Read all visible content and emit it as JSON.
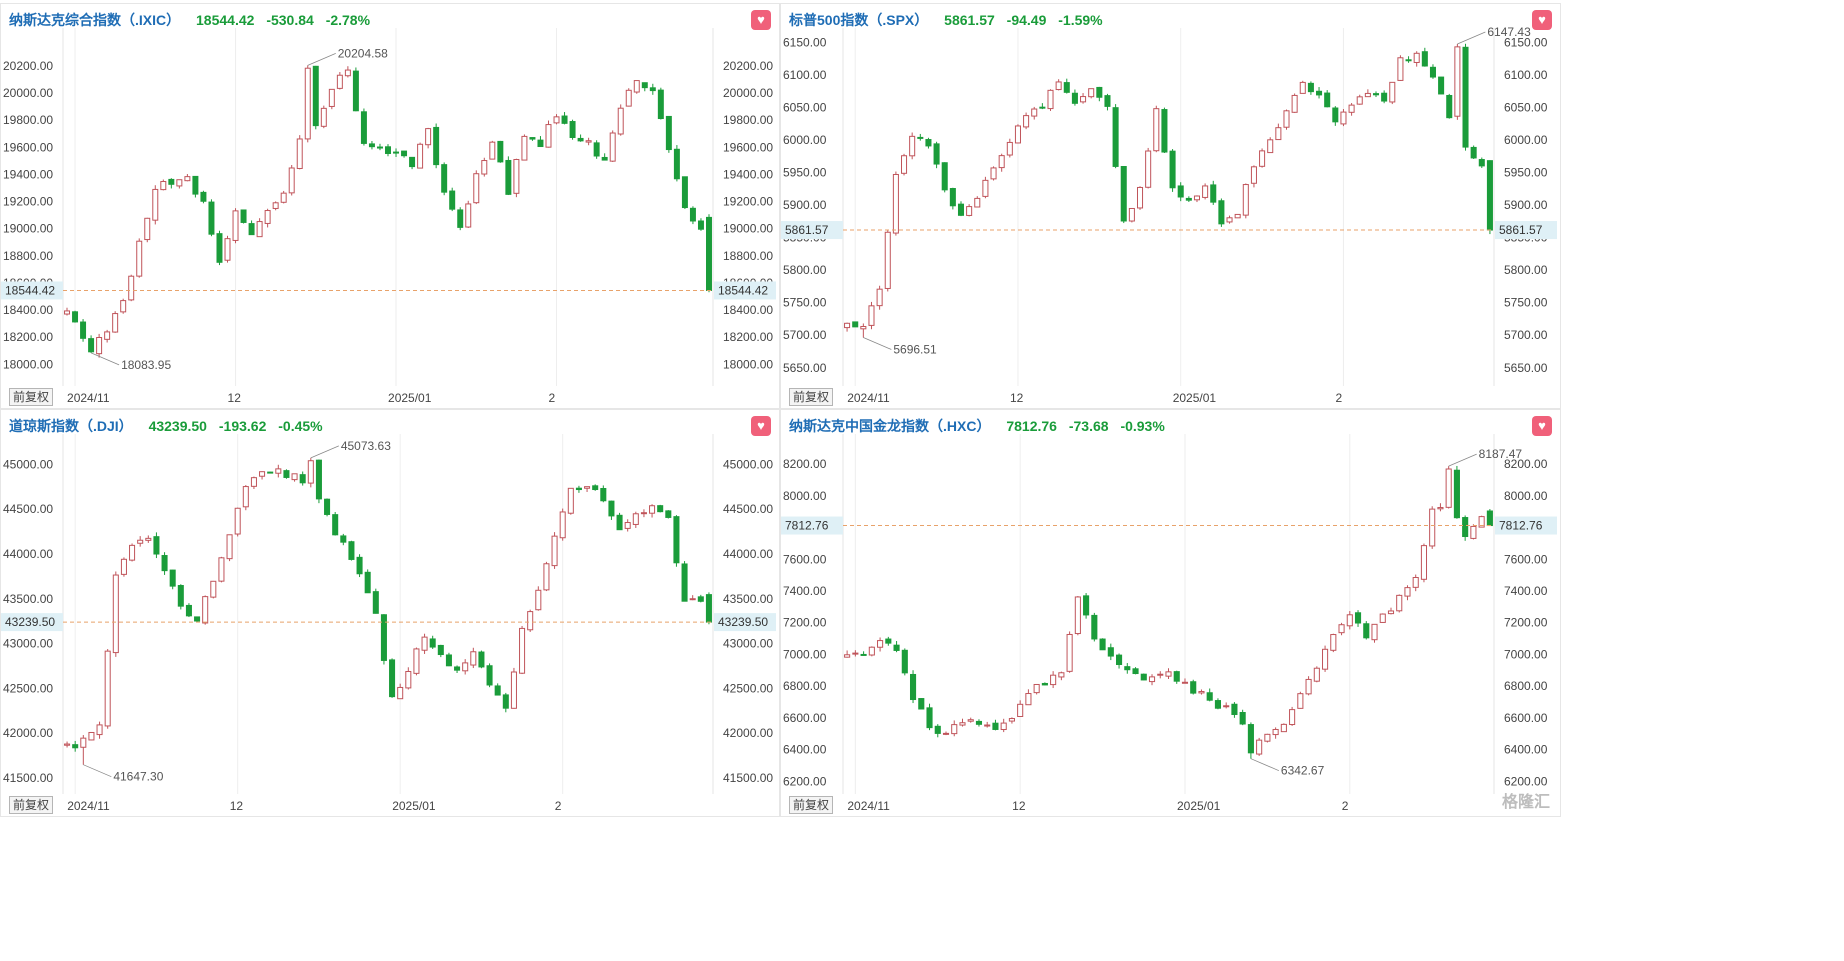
{
  "colors": {
    "up": "#c0545a",
    "down": "#1a9c3a",
    "price_line": "#e8a26a",
    "price_tag_bg": "#dff0f6"
  },
  "adj_label": "前复权",
  "watermark": "格隆汇",
  "panels": [
    {
      "id": "ixic",
      "title": "纳斯达克综合指数（.IXIC）",
      "last_str": "18544.42",
      "change_str": "-530.84",
      "pct_str": "-2.78%",
      "favorite_icon": "heart-icon",
      "active": true,
      "chart_data": {
        "type": "candlestick",
        "y_axis_ticks": [
          "18000.00",
          "18200.00",
          "18400.00",
          "18600.00",
          "18800.00",
          "19000.00",
          "19200.00",
          "19400.00",
          "19600.00",
          "19800.00",
          "20000.00",
          "20200.00"
        ],
        "ylim": [
          17840,
          20480
        ],
        "x_ticks": [
          {
            "label": "2024/11",
            "index": 1
          },
          {
            "label": "12",
            "index": 21
          },
          {
            "label": "2025/01",
            "index": 41
          },
          {
            "label": "2",
            "index": 61
          }
        ],
        "last_price": 18544.42,
        "last_label": "18544.42",
        "high_annotation": {
          "label": "20204.58",
          "index": 30,
          "value": 20204.58
        },
        "low_annotation": {
          "label": "18083.95",
          "index": 3,
          "value": 18083.95
        },
        "anchors": [
          [
            0,
            18380
          ],
          [
            3,
            18120
          ],
          [
            5,
            18250
          ],
          [
            7,
            18450
          ],
          [
            9,
            18900
          ],
          [
            11,
            19300
          ],
          [
            13,
            19350
          ],
          [
            15,
            19380
          ],
          [
            17,
            19190
          ],
          [
            19,
            18780
          ],
          [
            21,
            19100
          ],
          [
            23,
            18950
          ],
          [
            25,
            19150
          ],
          [
            27,
            19250
          ],
          [
            29,
            19650
          ],
          [
            31,
            19780
          ],
          [
            33,
            20050
          ],
          [
            35,
            20150
          ],
          [
            37,
            19620
          ],
          [
            40,
            19560
          ],
          [
            43,
            19480
          ],
          [
            45,
            19710
          ],
          [
            47,
            19250
          ],
          [
            49,
            19000
          ],
          [
            51,
            19400
          ],
          [
            53,
            19650
          ],
          [
            55,
            19280
          ],
          [
            57,
            19700
          ],
          [
            59,
            19630
          ],
          [
            61,
            19850
          ],
          [
            63,
            19680
          ],
          [
            65,
            19620
          ],
          [
            67,
            19480
          ],
          [
            69,
            19900
          ],
          [
            71,
            20080
          ],
          [
            73,
            20050
          ],
          [
            75,
            19600
          ],
          [
            77,
            19150
          ],
          [
            79,
            19020
          ],
          [
            80,
            18544.42
          ]
        ]
      }
    },
    {
      "id": "spx",
      "title": "标普500指数（.SPX）",
      "last_str": "5861.57",
      "change_str": "-94.49",
      "pct_str": "-1.59%",
      "favorite_icon": "heart-icon",
      "active": false,
      "chart_data": {
        "type": "candlestick",
        "y_axis_ticks": [
          "5650.00",
          "5700.00",
          "5750.00",
          "5800.00",
          "5850.00",
          "5900.00",
          "5950.00",
          "6000.00",
          "6050.00",
          "6100.00",
          "6150.00"
        ],
        "ylim": [
          5622,
          6172
        ],
        "x_ticks": [
          {
            "label": "2024/11",
            "index": 1
          },
          {
            "label": "12",
            "index": 21
          },
          {
            "label": "2025/01",
            "index": 41
          },
          {
            "label": "2",
            "index": 61
          }
        ],
        "last_price": 5861.57,
        "last_label": "5861.57",
        "high_annotation": {
          "label": "6147.43",
          "index": 75,
          "value": 6147.43
        },
        "low_annotation": {
          "label": "5696.51",
          "index": 2,
          "value": 5696.51
        },
        "anchors": [
          [
            0,
            5715
          ],
          [
            2,
            5712
          ],
          [
            4,
            5770
          ],
          [
            6,
            5950
          ],
          [
            8,
            6005
          ],
          [
            10,
            5995
          ],
          [
            12,
            5920
          ],
          [
            14,
            5890
          ],
          [
            16,
            5910
          ],
          [
            18,
            5960
          ],
          [
            20,
            6000
          ],
          [
            22,
            6035
          ],
          [
            24,
            6055
          ],
          [
            26,
            6090
          ],
          [
            28,
            6060
          ],
          [
            30,
            6075
          ],
          [
            32,
            6045
          ],
          [
            34,
            5870
          ],
          [
            36,
            5930
          ],
          [
            38,
            6045
          ],
          [
            40,
            5920
          ],
          [
            42,
            5905
          ],
          [
            44,
            5935
          ],
          [
            46,
            5870
          ],
          [
            48,
            5890
          ],
          [
            50,
            5960
          ],
          [
            52,
            6000
          ],
          [
            54,
            6050
          ],
          [
            56,
            6085
          ],
          [
            58,
            6070
          ],
          [
            60,
            6025
          ],
          [
            62,
            6050
          ],
          [
            64,
            6075
          ],
          [
            66,
            6055
          ],
          [
            68,
            6120
          ],
          [
            70,
            6130
          ],
          [
            72,
            6100
          ],
          [
            74,
            6035
          ],
          [
            76,
            5985
          ],
          [
            78,
            5955
          ],
          [
            79,
            5861.57
          ]
        ]
      }
    },
    {
      "id": "dji",
      "title": "道琼斯指数（.DJI）",
      "last_str": "43239.50",
      "change_str": "-193.62",
      "pct_str": "-0.45%",
      "favorite_icon": "heart-icon",
      "active": false,
      "chart_data": {
        "type": "candlestick",
        "y_axis_ticks": [
          "41500.00",
          "42000.00",
          "42500.00",
          "43000.00",
          "43500.00",
          "44000.00",
          "44500.00",
          "45000.00"
        ],
        "ylim": [
          41320,
          45340
        ],
        "x_ticks": [
          {
            "label": "2024/11",
            "index": 1
          },
          {
            "label": "12",
            "index": 21
          },
          {
            "label": "2025/01",
            "index": 41
          },
          {
            "label": "2",
            "index": 61
          }
        ],
        "last_price": 43239.5,
        "last_label": "43239.50",
        "high_annotation": {
          "label": "45073.63",
          "index": 30,
          "value": 45073.63
        },
        "low_annotation": {
          "label": "41647.30",
          "index": 2,
          "value": 41647.3
        },
        "anchors": [
          [
            0,
            41850
          ],
          [
            2,
            41900
          ],
          [
            4,
            42100
          ],
          [
            6,
            43750
          ],
          [
            8,
            44050
          ],
          [
            10,
            44200
          ],
          [
            12,
            43800
          ],
          [
            14,
            43400
          ],
          [
            16,
            43300
          ],
          [
            18,
            43700
          ],
          [
            20,
            44250
          ],
          [
            22,
            44750
          ],
          [
            24,
            44900
          ],
          [
            26,
            44950
          ],
          [
            28,
            44850
          ],
          [
            30,
            44800
          ],
          [
            32,
            44400
          ],
          [
            34,
            44100
          ],
          [
            36,
            43800
          ],
          [
            38,
            43300
          ],
          [
            40,
            42400
          ],
          [
            42,
            42700
          ],
          [
            44,
            43100
          ],
          [
            46,
            42850
          ],
          [
            48,
            42700
          ],
          [
            50,
            42900
          ],
          [
            52,
            42500
          ],
          [
            54,
            42300
          ],
          [
            56,
            43150
          ],
          [
            58,
            43600
          ],
          [
            60,
            44200
          ],
          [
            62,
            44700
          ],
          [
            64,
            44800
          ],
          [
            66,
            44600
          ],
          [
            68,
            44300
          ],
          [
            70,
            44450
          ],
          [
            72,
            44550
          ],
          [
            74,
            44400
          ],
          [
            76,
            43500
          ],
          [
            78,
            43450
          ],
          [
            79,
            43239.5
          ]
        ]
      }
    },
    {
      "id": "hxc",
      "title": "纳斯达克中国金龙指数（.HXC）",
      "last_str": "7812.76",
      "change_str": "-73.68",
      "pct_str": "-0.93%",
      "favorite_icon": "heart-icon",
      "active": false,
      "chart_data": {
        "type": "candlestick",
        "y_axis_ticks": [
          "6200.00",
          "6400.00",
          "6600.00",
          "6800.00",
          "7000.00",
          "7200.00",
          "7400.00",
          "7600.00",
          "7800.00",
          "8000.00",
          "8200.00"
        ],
        "ylim": [
          6120,
          8390
        ],
        "x_ticks": [
          {
            "label": "2024/11",
            "index": 1
          },
          {
            "label": "12",
            "index": 21
          },
          {
            "label": "2025/01",
            "index": 41
          },
          {
            "label": "2",
            "index": 61
          }
        ],
        "last_price": 7812.76,
        "last_label": "7812.76",
        "high_annotation": {
          "label": "8187.47",
          "index": 73,
          "value": 8187.47
        },
        "low_annotation": {
          "label": "6342.67",
          "index": 49,
          "value": 6342.67
        },
        "anchors": [
          [
            0,
            6980
          ],
          [
            2,
            7010
          ],
          [
            4,
            7100
          ],
          [
            6,
            7050
          ],
          [
            8,
            6720
          ],
          [
            10,
            6550
          ],
          [
            12,
            6500
          ],
          [
            14,
            6580
          ],
          [
            16,
            6560
          ],
          [
            18,
            6520
          ],
          [
            20,
            6620
          ],
          [
            22,
            6760
          ],
          [
            24,
            6820
          ],
          [
            26,
            6880
          ],
          [
            28,
            7350
          ],
          [
            30,
            7100
          ],
          [
            32,
            6970
          ],
          [
            34,
            6890
          ],
          [
            36,
            6850
          ],
          [
            38,
            6900
          ],
          [
            40,
            6850
          ],
          [
            42,
            6780
          ],
          [
            44,
            6720
          ],
          [
            46,
            6650
          ],
          [
            48,
            6540
          ],
          [
            49,
            6370
          ],
          [
            51,
            6520
          ],
          [
            53,
            6560
          ],
          [
            55,
            6750
          ],
          [
            57,
            6920
          ],
          [
            59,
            7150
          ],
          [
            61,
            7250
          ],
          [
            63,
            7100
          ],
          [
            65,
            7250
          ],
          [
            67,
            7350
          ],
          [
            69,
            7500
          ],
          [
            71,
            7900
          ],
          [
            73,
            7950
          ],
          [
            75,
            7750
          ],
          [
            77,
            7850
          ],
          [
            78,
            7812.76
          ]
        ]
      }
    }
  ]
}
